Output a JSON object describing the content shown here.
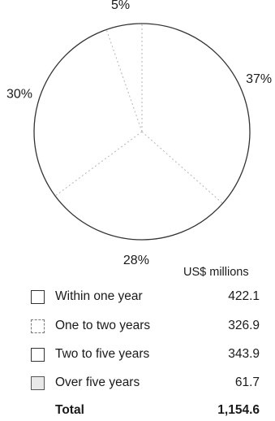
{
  "chart_data": {
    "type": "pie",
    "unit_label": "US$ millions",
    "slices": [
      {
        "label": "Within one year",
        "value": 422.1,
        "percent_label": "37%"
      },
      {
        "label": "One to two years",
        "value": 326.9,
        "percent_label": "28%"
      },
      {
        "label": "Two to five years",
        "value": 343.9,
        "percent_label": "30%"
      },
      {
        "label": "Over five years",
        "value": 61.7,
        "percent_label": "5%"
      }
    ],
    "total": {
      "label": "Total",
      "value": "1,154.6"
    },
    "legend": [
      {
        "label": "Within one year",
        "value": "422.1",
        "swatch": "plain"
      },
      {
        "label": "One to two years",
        "value": "326.9",
        "swatch": "dashed"
      },
      {
        "label": "Two to five years",
        "value": "343.9",
        "swatch": "plain"
      },
      {
        "label": "Over five years",
        "value": "61.7",
        "swatch": "shaded"
      }
    ],
    "colors": {
      "outline": "#333333",
      "divider": "#b5b5b5",
      "background": "#ffffff"
    }
  }
}
